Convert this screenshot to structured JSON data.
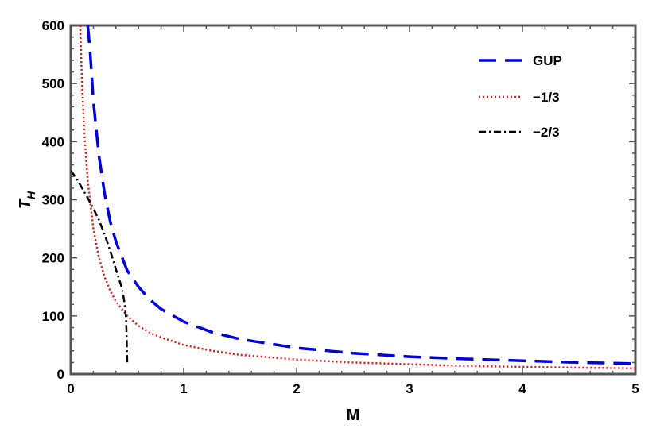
{
  "chart_data": {
    "type": "line",
    "title": "",
    "xlabel": "M",
    "ylabel": "T",
    "ylabel_subscript": "H",
    "xlim": [
      0,
      5
    ],
    "ylim": [
      0,
      600
    ],
    "xticks": [
      0,
      1,
      2,
      3,
      4,
      5
    ],
    "yticks": [
      0,
      100,
      200,
      300,
      400,
      500,
      600
    ],
    "xtick_labels": [
      "0",
      "1",
      "2",
      "3",
      "4",
      "5"
    ],
    "ytick_labels": [
      "0",
      "100",
      "200",
      "300",
      "400",
      "500",
      "600"
    ],
    "grid": false,
    "legend_position": "top-right",
    "series": [
      {
        "name": "GUP",
        "color": "#0000dd",
        "style": "dashed",
        "x": [
          0.15,
          0.17,
          0.2,
          0.25,
          0.3,
          0.35,
          0.4,
          0.45,
          0.5,
          0.6,
          0.7,
          0.8,
          1.0,
          1.25,
          1.5,
          2.0,
          2.5,
          3.0,
          3.5,
          4.0,
          4.5,
          5.0
        ],
        "y": [
          600,
          560,
          470,
          375,
          310,
          262,
          228,
          203,
          178,
          150,
          128,
          112,
          90,
          72,
          60,
          45,
          36,
          30,
          26,
          23,
          20,
          18
        ]
      },
      {
        "name": "−1/3",
        "color": "#ee1111",
        "style": "dotted",
        "x": [
          0.083,
          0.09,
          0.1,
          0.12,
          0.15,
          0.2,
          0.25,
          0.3,
          0.35,
          0.4,
          0.5,
          0.6,
          0.7,
          0.8,
          1.0,
          1.25,
          1.5,
          2.0,
          2.5,
          3.0,
          3.5,
          4.0,
          4.5,
          5.0
        ],
        "y": [
          600,
          555,
          500,
          417,
          333,
          250,
          200,
          167,
          143,
          125,
          100,
          83,
          71,
          63,
          50,
          40,
          33,
          25,
          20,
          17,
          14,
          12.5,
          11,
          10
        ]
      },
      {
        "name": "−2/3",
        "color": "#000000",
        "style": "dashdot",
        "x": [
          0.0,
          0.05,
          0.1,
          0.15,
          0.2,
          0.25,
          0.3,
          0.35,
          0.4,
          0.45,
          0.47,
          0.48,
          0.49,
          0.5
        ],
        "y": [
          350,
          337,
          320,
          303,
          285,
          265,
          240,
          212,
          180,
          150,
          130,
          115,
          95,
          20
        ]
      }
    ]
  }
}
